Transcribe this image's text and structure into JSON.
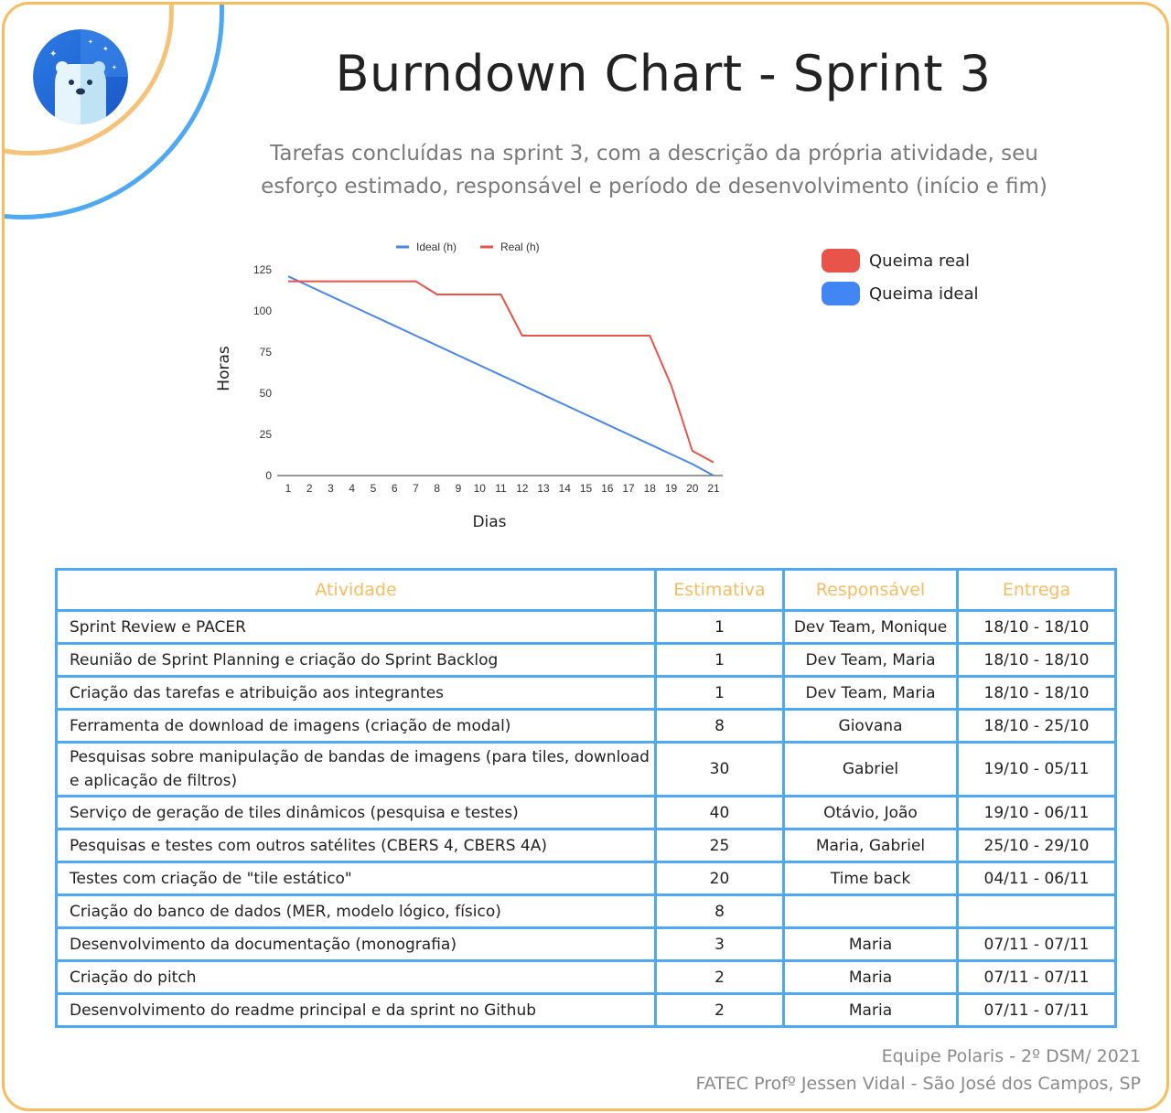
{
  "header": {
    "title": "Burndown Chart - Sprint 3",
    "subtitle_line1": "Tarefas concluídas na sprint 3, com a descrição da própria atividade, seu",
    "subtitle_line2": "esforço estimado, responsável e período de desenvolvimento (início e fim)"
  },
  "side_legend": [
    {
      "label": "Queima real",
      "color": "#e8544a"
    },
    {
      "label": "Queima ideal",
      "color": "#4285f4"
    }
  ],
  "chart_data": {
    "type": "line",
    "xlabel": "Dias",
    "ylabel": "Horas",
    "x": [
      1,
      2,
      3,
      4,
      5,
      6,
      7,
      8,
      9,
      10,
      11,
      12,
      13,
      14,
      15,
      16,
      17,
      18,
      19,
      20,
      21
    ],
    "ylim": [
      0,
      125
    ],
    "yticks": [
      0,
      25,
      50,
      75,
      100,
      125
    ],
    "legend_position": "top",
    "series": [
      {
        "name": "Ideal (h)",
        "color": "#4a86e8",
        "values": [
          121,
          115,
          109,
          103,
          97,
          91,
          85,
          79,
          73,
          67,
          61,
          55,
          49,
          43,
          37,
          31,
          25,
          19,
          13,
          7,
          0
        ]
      },
      {
        "name": "Real (h)",
        "color": "#e8544a",
        "values": [
          118,
          118,
          118,
          118,
          118,
          118,
          118,
          110,
          110,
          110,
          110,
          85,
          85,
          85,
          85,
          85,
          85,
          85,
          55,
          15,
          8
        ]
      }
    ]
  },
  "table": {
    "headers": [
      "Atividade",
      "Estimativa",
      "Responsável",
      "Entrega"
    ],
    "rows": [
      {
        "activity": "Sprint Review e PACER",
        "estimate": "1",
        "owner": "Dev Team, Monique",
        "delivery": "18/10 - 18/10"
      },
      {
        "activity": "Reunião de Sprint Planning e criação do Sprint Backlog",
        "estimate": "1",
        "owner": "Dev Team, Maria",
        "delivery": "18/10 - 18/10"
      },
      {
        "activity": "Criação das tarefas e atribuição aos integrantes",
        "estimate": "1",
        "owner": "Dev Team, Maria",
        "delivery": "18/10 - 18/10"
      },
      {
        "activity": "Ferramenta de download de imagens (criação de modal)",
        "estimate": "8",
        "owner": "Giovana",
        "delivery": "18/10 - 25/10"
      },
      {
        "activity": "Pesquisas sobre manipulação de bandas de imagens (para tiles, download e aplicação de filtros)",
        "estimate": "30",
        "owner": "Gabriel",
        "delivery": "19/10 - 05/11"
      },
      {
        "activity": "Serviço de geração de tiles dinâmicos (pesquisa e testes)",
        "estimate": "40",
        "owner": "Otávio, João",
        "delivery": "19/10 - 06/11"
      },
      {
        "activity": "Pesquisas e testes com outros satélites (CBERS 4, CBERS 4A)",
        "estimate": "25",
        "owner": "Maria, Gabriel",
        "delivery": "25/10 - 29/10"
      },
      {
        "activity": "Testes com criação de \"tile estático\"",
        "estimate": "20",
        "owner": "Time back",
        "delivery": "04/11 - 06/11"
      },
      {
        "activity": "Criação do banco de dados (MER, modelo lógico, físico)",
        "estimate": "8",
        "owner": "",
        "delivery": ""
      },
      {
        "activity": "Desenvolvimento da documentação (monografia)",
        "estimate": "3",
        "owner": "Maria",
        "delivery": "07/11 - 07/11"
      },
      {
        "activity": "Criação do pitch",
        "estimate": "2",
        "owner": "Maria",
        "delivery": "07/11 - 07/11"
      },
      {
        "activity": "Desenvolvimento do readme principal e da sprint no Github",
        "estimate": "2",
        "owner": "Maria",
        "delivery": "07/11 - 07/11"
      }
    ]
  },
  "footer": {
    "line1": "Equipe Polaris - 2º DSM/ 2021",
    "line2": "FATEC Profº Jessen Vidal - São José dos Campos, SP"
  }
}
